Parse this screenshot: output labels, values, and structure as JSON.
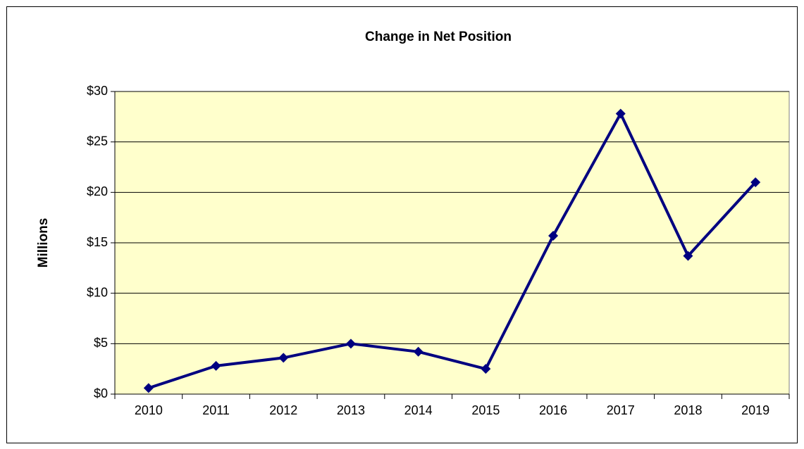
{
  "chart_data": {
    "type": "line",
    "title": "Change in Net Position",
    "y_label": "Millions",
    "categories": [
      "2010",
      "2011",
      "2012",
      "2013",
      "2014",
      "2015",
      "2016",
      "2017",
      "2018",
      "2019"
    ],
    "series": [
      {
        "name": "Change in Net Position",
        "color": "#000080",
        "values": [
          0.6,
          2.8,
          3.6,
          5.0,
          4.2,
          2.5,
          15.7,
          27.8,
          13.7,
          21.0
        ]
      }
    ],
    "ylim": [
      0,
      30
    ],
    "yticks": [
      {
        "value": 0,
        "label": "$0"
      },
      {
        "value": 5,
        "label": "$5"
      },
      {
        "value": 10,
        "label": "$10"
      },
      {
        "value": 15,
        "label": "$15"
      },
      {
        "value": 20,
        "label": "$20"
      },
      {
        "value": 25,
        "label": "$25"
      },
      {
        "value": 30,
        "label": "$30"
      }
    ],
    "grid": true,
    "plot_background": "#ffffcc"
  }
}
